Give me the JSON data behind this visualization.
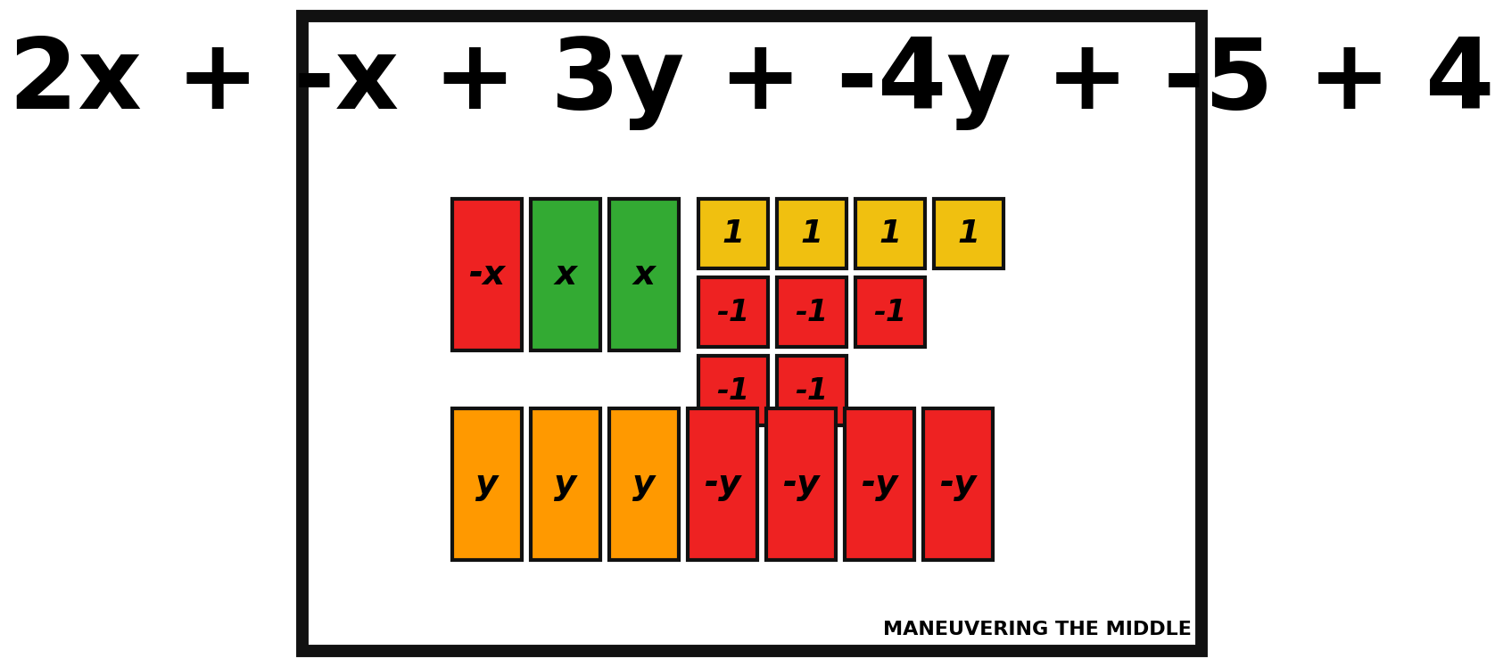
{
  "title": "2x + -x + 3y + -4y + -5 + 4",
  "title_fontsize": 80,
  "title_fontweight": "bold",
  "bg_color": "#ffffff",
  "border_color": "#111111",
  "border_linewidth": 10,
  "watermark": "MANEUVERING THE MIDDLE",
  "watermark_fontsize": 16,
  "colors": {
    "red": "#ee2222",
    "green": "#33aa33",
    "orange": "#ff9900",
    "yellow": "#f0c010"
  },
  "tile_linewidth": 3.0,
  "tile_border": "#111111"
}
